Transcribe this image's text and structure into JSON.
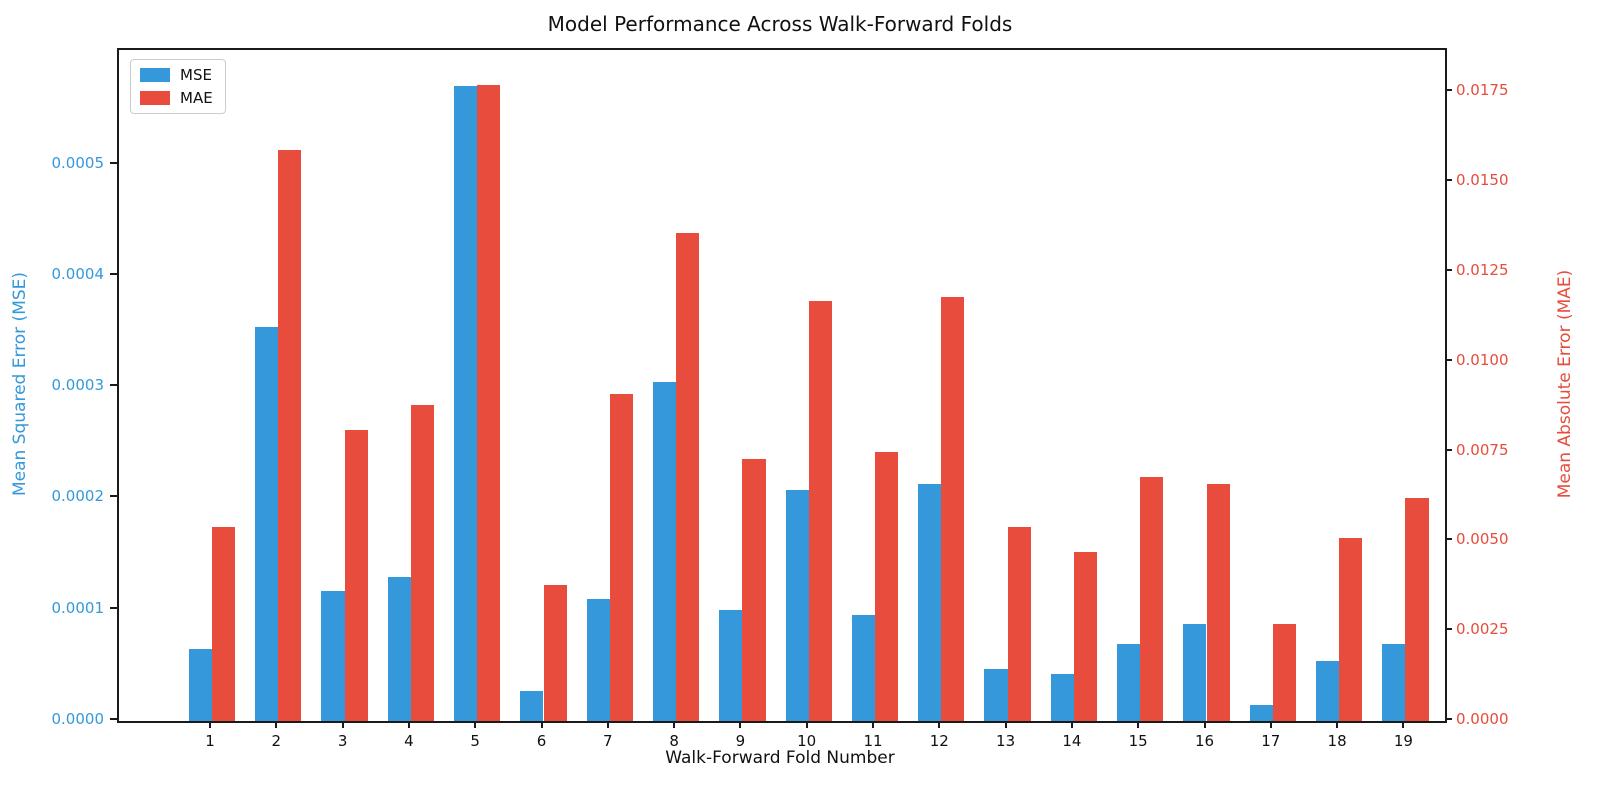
{
  "title": "Model Performance Across Walk-Forward Folds",
  "chart_data": {
    "type": "bar",
    "title": "Model Performance Across Walk-Forward Folds",
    "xlabel": "Walk-Forward Fold Number",
    "ylabel_left": "Mean Squared Error (MSE)",
    "ylabel_right": "Mean Absolute Error (MAE)",
    "categories": [
      "1",
      "2",
      "3",
      "4",
      "5",
      "6",
      "7",
      "8",
      "9",
      "10",
      "11",
      "12",
      "13",
      "14",
      "15",
      "16",
      "17",
      "18",
      "19"
    ],
    "series": [
      {
        "name": "MSE",
        "axis": "left",
        "color": "#3498db",
        "values": [
          6.5e-05,
          0.000354,
          0.000117,
          0.000129,
          0.000571,
          2.7e-05,
          0.00011,
          0.000305,
          0.0001,
          0.000208,
          9.5e-05,
          0.000213,
          4.7e-05,
          4.2e-05,
          6.9e-05,
          8.7e-05,
          1.4e-05,
          5.4e-05,
          6.9e-05
        ]
      },
      {
        "name": "MAE",
        "axis": "right",
        "color": "#e74c3c",
        "values": [
          0.0054,
          0.0159,
          0.0081,
          0.0088,
          0.0177,
          0.0038,
          0.0091,
          0.0136,
          0.0073,
          0.0117,
          0.0075,
          0.0118,
          0.0054,
          0.0047,
          0.0068,
          0.0066,
          0.0027,
          0.0051,
          0.0062
        ]
      }
    ],
    "left_axis": {
      "color": "#3498db",
      "max": 0.000603,
      "ticks": [
        0.0,
        0.0001,
        0.0002,
        0.0003,
        0.0004,
        0.0005
      ],
      "tick_labels": [
        "0.0000",
        "0.0001",
        "0.0002",
        "0.0003",
        "0.0004",
        "0.0005"
      ]
    },
    "right_axis": {
      "color": "#e74c3c",
      "max": 0.018682,
      "ticks": [
        0.0,
        0.0025,
        0.005,
        0.0075,
        0.01,
        0.0125,
        0.015,
        0.0175
      ],
      "tick_labels": [
        "0.0000",
        "0.0025",
        "0.0050",
        "0.0075",
        "0.0100",
        "0.0125",
        "0.0150",
        "0.0175"
      ]
    },
    "legend": [
      {
        "label": "MSE",
        "color": "#3498db"
      },
      {
        "label": "MAE",
        "color": "#e74c3c"
      }
    ],
    "legend_position": "upper left",
    "grid": false
  }
}
